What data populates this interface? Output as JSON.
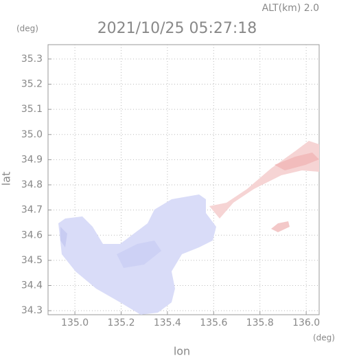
{
  "chart_data": {
    "type": "map",
    "title": "2021/10/25 05:27:18",
    "subtitle": "ALT(km) 2.0",
    "x_label": "lon",
    "x_unit": "(deg)",
    "y_label": "lat",
    "y_unit": "(deg)",
    "xlim": [
      134.884,
      136.056
    ],
    "ylim": [
      34.284,
      35.357
    ],
    "xticks": [
      {
        "value": 135.0,
        "label": "135.0"
      },
      135.2,
      135.4,
      135.6,
      135.8,
      {
        "value": 136.0,
        "label": "136.0"
      }
    ],
    "yticks": [
      34.3,
      34.4,
      34.5,
      34.6,
      34.7,
      34.8,
      34.9,
      {
        "value": 35.0,
        "label": "35.0"
      },
      35.1,
      35.2,
      35.3
    ],
    "grid": true
  }
}
